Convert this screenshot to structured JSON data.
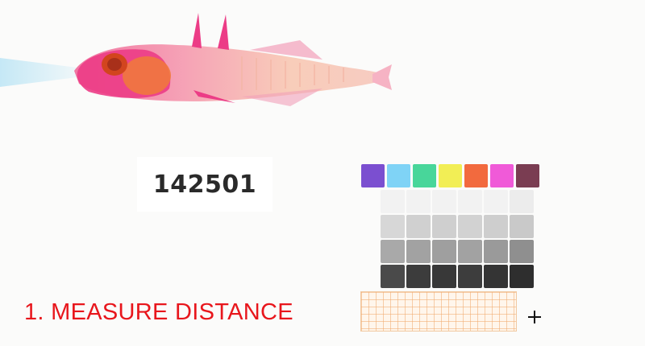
{
  "specimen": {
    "id_label": "142501"
  },
  "status": {
    "instruction": "1. MEASURE DISTANCE"
  },
  "colors": {
    "instruction_text": "#e8161c",
    "fish_stain": "#ec3c86",
    "fish_head": "#f07a38",
    "swatch_row": [
      "#7b4fd0",
      "#7fd3f6",
      "#48d69a",
      "#f2ee55",
      "#f26a3e",
      "#f05ad8",
      "#7a3d52"
    ],
    "gray_rows": [
      [
        "#f2f2f2",
        "#f2f2f2",
        "#f2f2f2",
        "#f2f2f2",
        "#f2f2f2",
        "#ececec"
      ],
      [
        "#d7d7d7",
        "#d0d0d0",
        "#cfcfcf",
        "#d2d2d2",
        "#cecece",
        "#c9c9c9"
      ],
      [
        "#a9a9a9",
        "#a2a2a2",
        "#9f9f9f",
        "#a2a2a2",
        "#9a9a9a",
        "#8f8f8f"
      ],
      [
        "#4a4a4a",
        "#3c3c3c",
        "#383838",
        "#3d3d3d",
        "#343434",
        "#2e2e2e"
      ]
    ]
  },
  "icons": {
    "cursor": "crosshair-icon"
  }
}
